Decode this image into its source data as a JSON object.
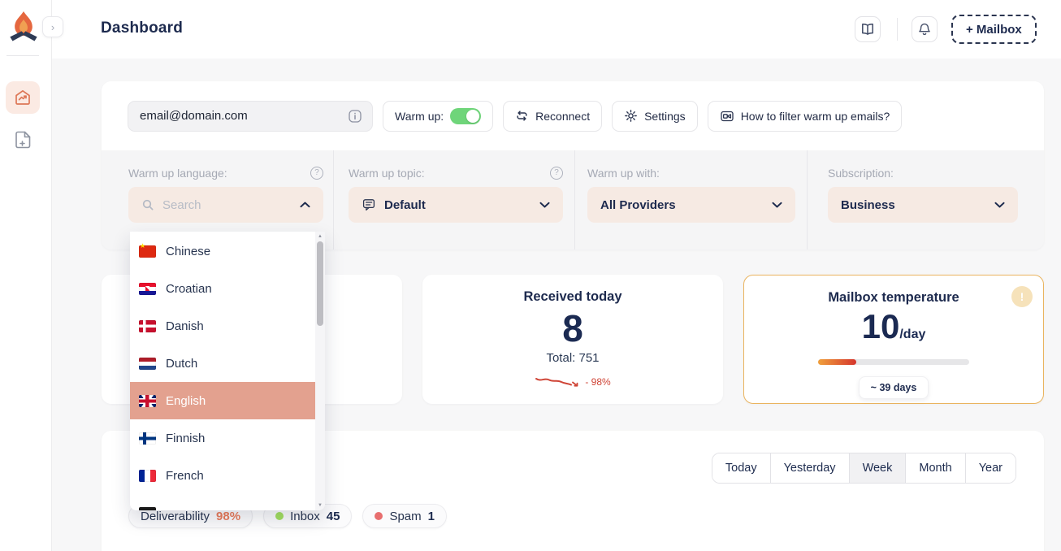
{
  "colors": {
    "accent": "#dd7757",
    "highlight_salmon": "#e3a18f",
    "toggle_green": "#6fd57a",
    "temperature_border_gold": "#eab45f",
    "trend_red": "#cf4436",
    "inbox_green": "#a3e05f",
    "spam_red": "#e86f6f",
    "deliverability_orange": "#ea7c5a",
    "navy": "#1d2a4e"
  },
  "sidebar": {
    "logo_icon": "campfire-logo",
    "collapse_icon": "chevron-right-icon",
    "nav": [
      {
        "icon": "home-trend-icon",
        "active": true
      },
      {
        "icon": "file-plus-icon",
        "active": false
      }
    ]
  },
  "header": {
    "title": "Dashboard",
    "docs_icon": "book-icon",
    "notifications_icon": "bell-icon",
    "mailbox_button": "+ Mailbox"
  },
  "mailbox_bar": {
    "email_value": "email@domain.com",
    "email_info_icon": "info-icon",
    "warmup_label": "Warm up:",
    "warmup_on": true,
    "reconnect_label": "Reconnect",
    "reconnect_icon": "repeat-icon",
    "settings_label": "Settings",
    "settings_icon": "gear-icon",
    "help_label": "How to filter warm up emails?",
    "help_icon": "video-icon"
  },
  "filters": {
    "language": {
      "label": "Warm up language:",
      "placeholder": "Search",
      "search_icon": "search-icon",
      "help_icon": "question-icon",
      "state": "expanded"
    },
    "topic": {
      "label": "Warm up topic:",
      "value": "Default",
      "icon": "chat-icon",
      "help_icon": "question-icon"
    },
    "provider": {
      "label": "Warm up with:",
      "value": "All Providers"
    },
    "subscription": {
      "label": "Subscription:",
      "value": "Business"
    }
  },
  "language_dropdown": {
    "items": [
      {
        "label": "Chinese",
        "flag": "cn",
        "selected": false
      },
      {
        "label": "Croatian",
        "flag": "hr",
        "selected": false
      },
      {
        "label": "Danish",
        "flag": "dk",
        "selected": false
      },
      {
        "label": "Dutch",
        "flag": "nl",
        "selected": false
      },
      {
        "label": "English",
        "flag": "gb",
        "selected": true
      },
      {
        "label": "Finnish",
        "flag": "fi",
        "selected": false
      },
      {
        "label": "French",
        "flag": "fr",
        "selected": false
      },
      {
        "label": "",
        "flag": "de",
        "selected": false
      }
    ]
  },
  "stats": {
    "received": {
      "title": "Received today",
      "value": "8",
      "total": "Total: 751",
      "trend": "- 98%"
    },
    "temperature": {
      "title": "Mailbox temperature",
      "value": "10",
      "unit": "/day",
      "eta": "~ 39 days",
      "progress_percent": 25,
      "alert_icon": "exclamation-icon"
    }
  },
  "chart_section": {
    "tabs": [
      {
        "label": "Today",
        "active": false
      },
      {
        "label": "Yesterday",
        "active": false
      },
      {
        "label": "Week",
        "active": true
      },
      {
        "label": "Month",
        "active": false
      },
      {
        "label": "Year",
        "active": false
      }
    ],
    "legend": [
      {
        "label": "Deliverability",
        "value": "98%",
        "style": "orange-value"
      },
      {
        "label": "Inbox",
        "value": "45",
        "dot_color": "#a3e05f"
      },
      {
        "label": "Spam",
        "value": "1",
        "dot_color": "#e86f6f"
      }
    ]
  }
}
